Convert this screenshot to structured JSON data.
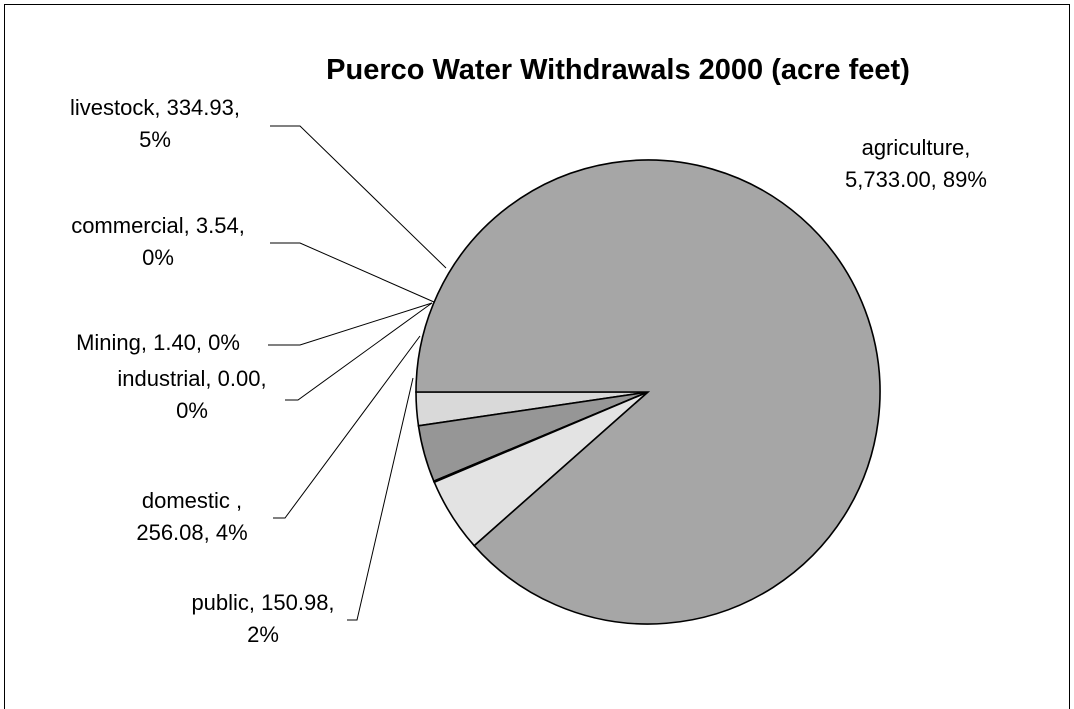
{
  "chart_data": {
    "type": "pie",
    "title": "Puerco Water Withdrawals 2000 (acre feet)",
    "slices": [
      {
        "name": "agriculture",
        "value": 5733.0,
        "value_label": "5,733.00",
        "percent_label": "89%",
        "color": "#a6a6a6"
      },
      {
        "name": "livestock",
        "value": 334.93,
        "value_label": "334.93",
        "percent_label": "5%",
        "color": "#e3e3e3"
      },
      {
        "name": "commercial",
        "value": 3.54,
        "value_label": "3.54",
        "percent_label": "0%",
        "color": "#ffffff"
      },
      {
        "name": "Mining",
        "value": 1.4,
        "value_label": "1.40",
        "percent_label": "0%",
        "color": "#ffffff"
      },
      {
        "name": "industrial",
        "value": 0.0,
        "value_label": "0.00",
        "percent_label": "0%",
        "color": "#ffffff"
      },
      {
        "name": "domestic ",
        "value": 256.08,
        "value_label": "256.08",
        "percent_label": "4%",
        "color": "#969696"
      },
      {
        "name": "public",
        "value": 150.98,
        "value_label": "150.98",
        "percent_label": "2%",
        "color": "#d9d9d9"
      }
    ],
    "labels": [
      {
        "slice": "agriculture",
        "lines": [
          "agriculture,",
          "5,733.00, 89%"
        ]
      },
      {
        "slice": "livestock",
        "lines": [
          "livestock, 334.93,",
          "5%"
        ]
      },
      {
        "slice": "commercial",
        "lines": [
          "commercial, 3.54,",
          "0%"
        ]
      },
      {
        "slice": "Mining",
        "lines": [
          "Mining, 1.40, 0%"
        ]
      },
      {
        "slice": "industrial",
        "lines": [
          "industrial, 0.00,",
          "0%"
        ]
      },
      {
        "slice": "domestic ",
        "lines": [
          "domestic ,",
          "256.08, 4%"
        ]
      },
      {
        "slice": "public",
        "lines": [
          "public, 150.98,",
          "2%"
        ]
      }
    ],
    "legend": "none",
    "slice_order": "clockwise from 9 o'clock"
  }
}
